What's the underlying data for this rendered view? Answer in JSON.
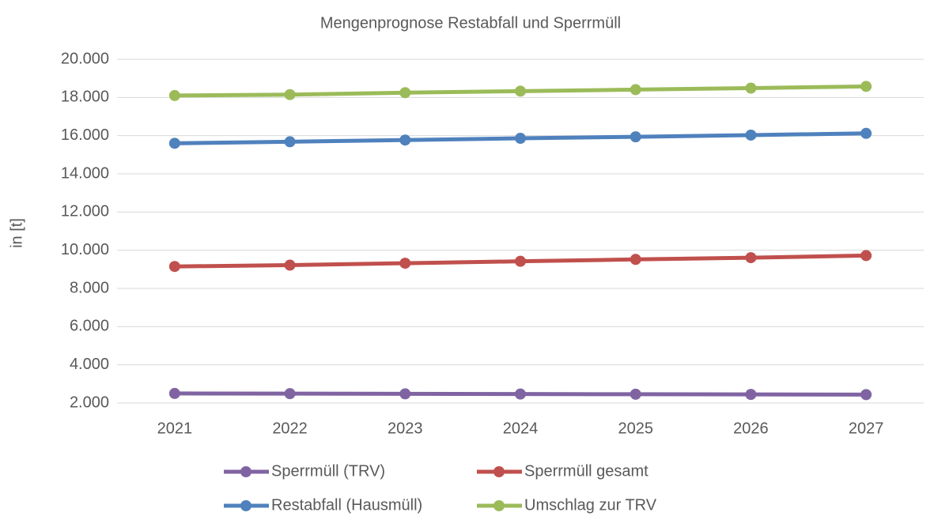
{
  "chart_data": {
    "type": "line",
    "title": "Mengenprognose Restabfall und Sperrmüll",
    "y_label": "in [t]",
    "categories": [
      "2021",
      "2022",
      "2023",
      "2024",
      "2025",
      "2026",
      "2027"
    ],
    "series": [
      {
        "name": "Sperrmüll (TRV)",
        "color": "#8064a2",
        "values": [
          2500,
          2490,
          2480,
          2470,
          2460,
          2450,
          2440
        ]
      },
      {
        "name": "Sperrmüll gesamt",
        "color": "#c0504d",
        "values": [
          9150,
          9220,
          9320,
          9420,
          9520,
          9610,
          9720
        ]
      },
      {
        "name": "Restabfall (Hausmüll)",
        "color": "#4f81bd",
        "values": [
          15600,
          15680,
          15770,
          15860,
          15940,
          16030,
          16120
        ]
      },
      {
        "name": "Umschlag zur TRV",
        "color": "#9bbb59",
        "values": [
          18100,
          18150,
          18250,
          18330,
          18410,
          18490,
          18580
        ]
      }
    ],
    "ylim": [
      2000,
      20000
    ],
    "yticks": [
      {
        "value": 2000,
        "label": "2.000"
      },
      {
        "value": 4000,
        "label": "4.000"
      },
      {
        "value": 6000,
        "label": "6.000"
      },
      {
        "value": 8000,
        "label": "8.000"
      },
      {
        "value": 10000,
        "label": "10.000"
      },
      {
        "value": 12000,
        "label": "12.000"
      },
      {
        "value": 14000,
        "label": "14.000"
      },
      {
        "value": 16000,
        "label": "16.000"
      },
      {
        "value": 18000,
        "label": "18.000"
      },
      {
        "value": 20000,
        "label": "20.000"
      }
    ],
    "grid": true,
    "legend": "bottom"
  }
}
